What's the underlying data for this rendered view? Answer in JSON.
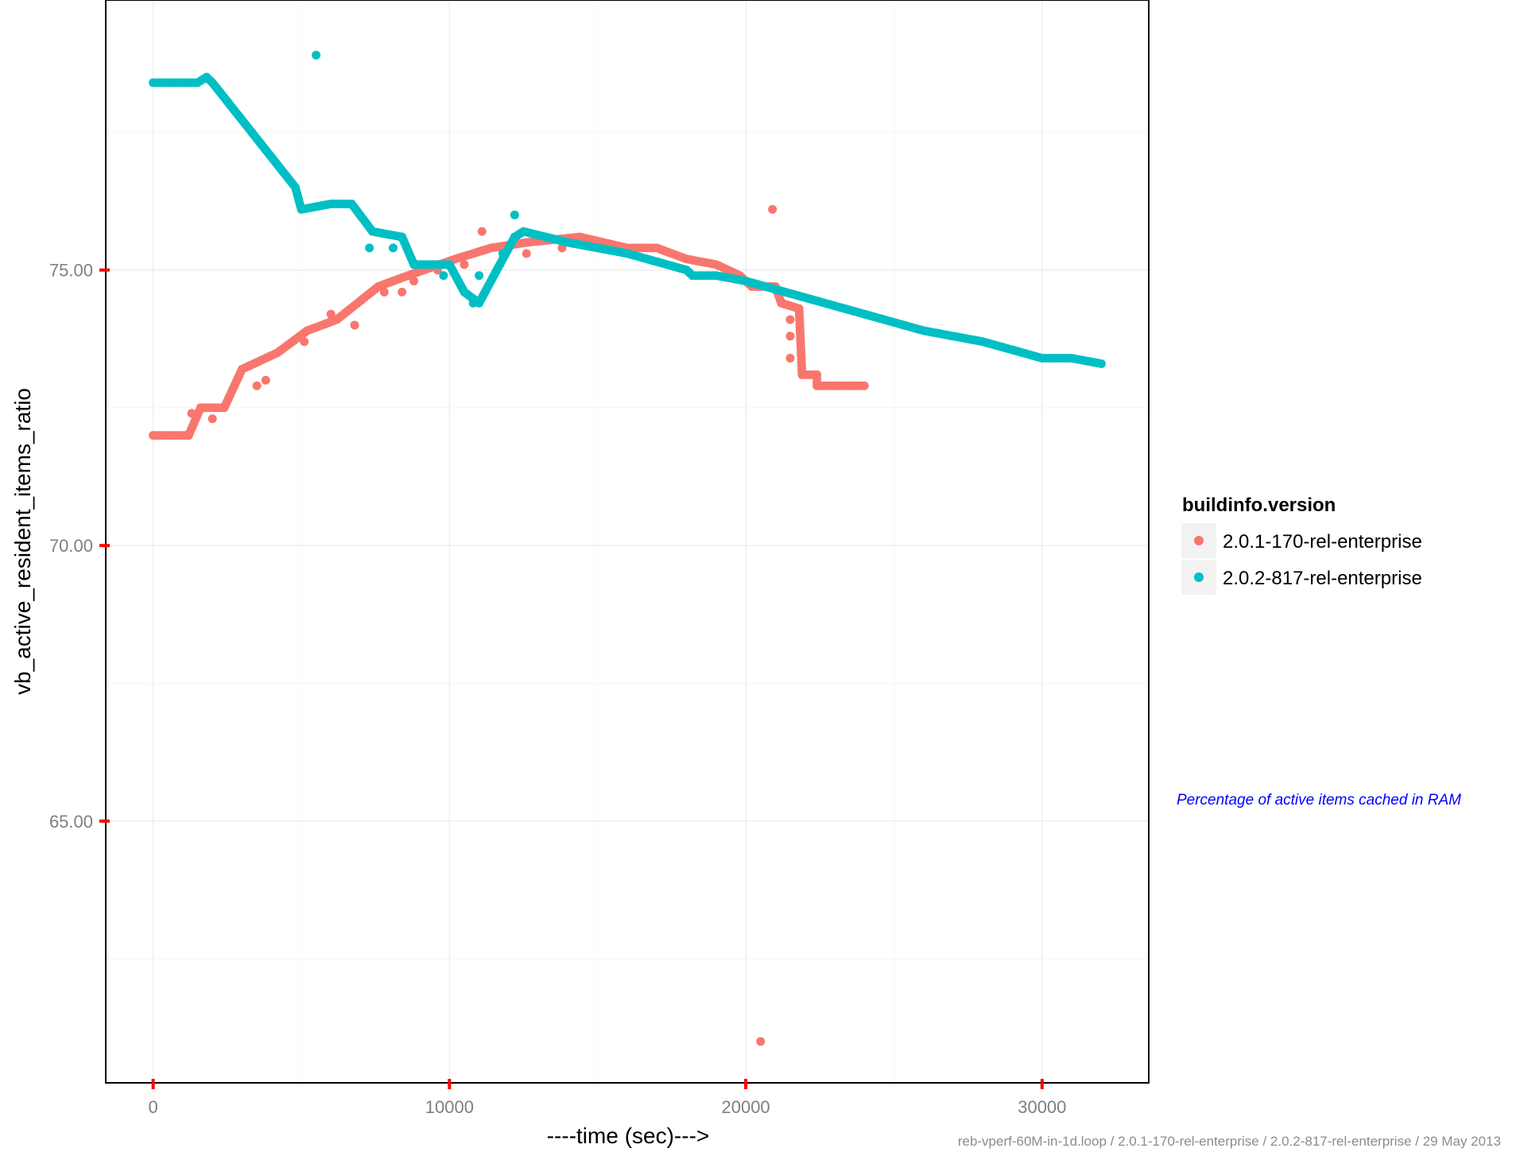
{
  "chart_data": {
    "type": "scatter",
    "title": "",
    "xlabel": "----time (sec)--->",
    "ylabel": "vb_active_resident_items_ratio",
    "xlim": [
      -1600,
      33600
    ],
    "ylim": [
      60.25,
      79.9
    ],
    "x_ticks": [
      0,
      10000,
      20000,
      30000
    ],
    "x_tick_labels": [
      "0",
      "10000",
      "20000",
      "30000"
    ],
    "y_ticks": [
      65,
      70,
      75
    ],
    "y_tick_labels": [
      "65.00",
      "70.00",
      "75.00"
    ],
    "grid": true,
    "legend": {
      "title": "buildinfo.version",
      "position": "right"
    },
    "annotation": "Percentage of active items cached in RAM",
    "caption": "reb-vperf-60M-in-1d.loop / 2.0.1-170-rel-enterprise / 2.0.2-817-rel-enterprise / 29 May 2013",
    "series": [
      {
        "name": "2.0.1-170-rel-enterprise",
        "color": "#f8766d",
        "segments": [
          [
            [
              0,
              72.0
            ],
            [
              1200,
              72.0
            ],
            [
              1600,
              72.5
            ],
            [
              2400,
              72.5
            ],
            [
              3000,
              73.2
            ],
            [
              4200,
              73.5
            ],
            [
              5200,
              73.9
            ],
            [
              6200,
              74.1
            ],
            [
              7600,
              74.7
            ],
            [
              8600,
              74.9
            ],
            [
              10200,
              75.2
            ],
            [
              11400,
              75.4
            ],
            [
              12600,
              75.5
            ],
            [
              14400,
              75.6
            ],
            [
              16000,
              75.4
            ],
            [
              17000,
              75.4
            ],
            [
              18000,
              75.2
            ],
            [
              19000,
              75.1
            ],
            [
              19800,
              74.9
            ],
            [
              20200,
              74.7
            ],
            [
              21000,
              74.7
            ],
            [
              21200,
              74.4
            ],
            [
              21800,
              74.3
            ],
            [
              21900,
              73.1
            ],
            [
              22400,
              73.1
            ],
            [
              22400,
              72.9
            ],
            [
              24000,
              72.9
            ]
          ]
        ],
        "points": [
          [
            1300,
            72.4
          ],
          [
            2000,
            72.3
          ],
          [
            3500,
            72.9
          ],
          [
            3800,
            73.0
          ],
          [
            5100,
            73.7
          ],
          [
            6000,
            74.2
          ],
          [
            6800,
            74.0
          ],
          [
            7800,
            74.6
          ],
          [
            8400,
            74.6
          ],
          [
            8800,
            74.8
          ],
          [
            9600,
            75.0
          ],
          [
            10500,
            75.1
          ],
          [
            11100,
            75.7
          ],
          [
            12600,
            75.3
          ],
          [
            13800,
            75.4
          ],
          [
            14600,
            75.5
          ],
          [
            20500,
            61.0
          ],
          [
            20900,
            76.1
          ],
          [
            21500,
            74.1
          ],
          [
            21500,
            73.8
          ],
          [
            21500,
            73.4
          ]
        ]
      },
      {
        "name": "2.0.2-817-rel-enterprise",
        "color": "#00bfc4",
        "segments": [
          [
            [
              0,
              78.4
            ],
            [
              1500,
              78.4
            ],
            [
              1800,
              78.5
            ],
            [
              2000,
              78.4
            ],
            [
              4800,
              76.5
            ],
            [
              5000,
              76.1
            ],
            [
              6000,
              76.2
            ],
            [
              6700,
              76.2
            ],
            [
              7400,
              75.7
            ],
            [
              8400,
              75.6
            ],
            [
              8800,
              75.1
            ],
            [
              10000,
              75.1
            ],
            [
              10500,
              74.6
            ],
            [
              11000,
              74.4
            ],
            [
              11800,
              75.2
            ],
            [
              12200,
              75.6
            ],
            [
              12500,
              75.7
            ],
            [
              14000,
              75.5
            ],
            [
              16000,
              75.3
            ],
            [
              18000,
              75.0
            ],
            [
              18200,
              74.9
            ],
            [
              19000,
              74.9
            ],
            [
              20000,
              74.8
            ],
            [
              22000,
              74.5
            ],
            [
              24000,
              74.2
            ],
            [
              26000,
              73.9
            ],
            [
              28000,
              73.7
            ],
            [
              30000,
              73.4
            ],
            [
              31000,
              73.4
            ],
            [
              32000,
              73.3
            ]
          ]
        ],
        "points": [
          [
            5500,
            78.9
          ],
          [
            7300,
            75.4
          ],
          [
            8100,
            75.4
          ],
          [
            9800,
            74.9
          ],
          [
            10800,
            74.4
          ],
          [
            11200,
            74.6
          ],
          [
            11000,
            74.9
          ],
          [
            12200,
            76.0
          ],
          [
            11800,
            75.3
          ],
          [
            12000,
            75.4
          ]
        ]
      }
    ]
  }
}
